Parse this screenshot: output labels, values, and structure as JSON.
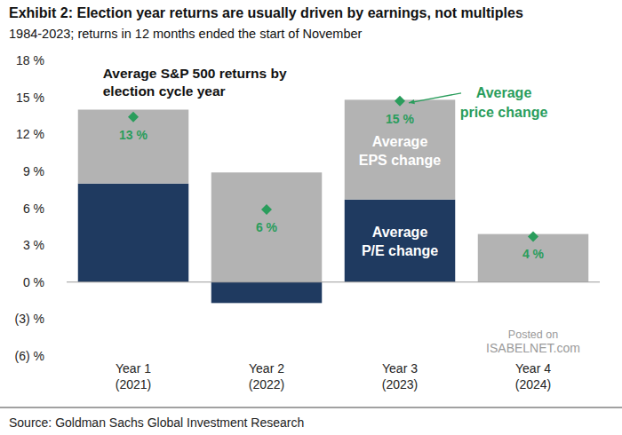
{
  "chart_data": {
    "type": "bar",
    "title": "Exhibit 2: Election year returns are usually driven by earnings, not multiples",
    "subtitle": "1984-2023; returns in 12 months ended the start of November",
    "annotations": [
      "Average S&P 500 returns by election cycle year",
      "Posted on",
      "ISABELNET.com"
    ],
    "source": "Source: Goldman Sachs Global Investment Research",
    "categories": [
      "Year 1\n(2021)",
      "Year 2\n(2022)",
      "Year 3\n(2023)",
      "Year 4\n(2024)"
    ],
    "stacked": true,
    "grid": false,
    "series": [
      {
        "name": "Average P/E change",
        "color": "#1f3a60",
        "values": [
          8.0,
          -1.7,
          6.7,
          0.0
        ]
      },
      {
        "name": "Average EPS change",
        "color": "#b3b3b3",
        "values": [
          6.0,
          8.9,
          8.1,
          3.9
        ]
      },
      {
        "name": "Average price change",
        "type": "scatter",
        "marker": "diamond",
        "color": "#2a9d5c",
        "values": [
          13.4,
          5.9,
          14.7,
          3.7
        ],
        "data_labels": true,
        "value_labels": [
          "13 %",
          "6 %",
          "15 %",
          "4 %"
        ]
      }
    ],
    "ylim": [
      -6,
      18
    ],
    "yticks": [
      {
        "value": -6,
        "label": "(6) %"
      },
      {
        "value": -3,
        "label": "(3) %"
      },
      {
        "value": 0,
        "label": "0 %"
      },
      {
        "value": 3,
        "label": "3 %"
      },
      {
        "value": 6,
        "label": "6 %"
      },
      {
        "value": 9,
        "label": "9 %"
      },
      {
        "value": 12,
        "label": "12 %"
      },
      {
        "value": 15,
        "label": "15 %"
      },
      {
        "value": 18,
        "label": "18 %"
      }
    ]
  }
}
